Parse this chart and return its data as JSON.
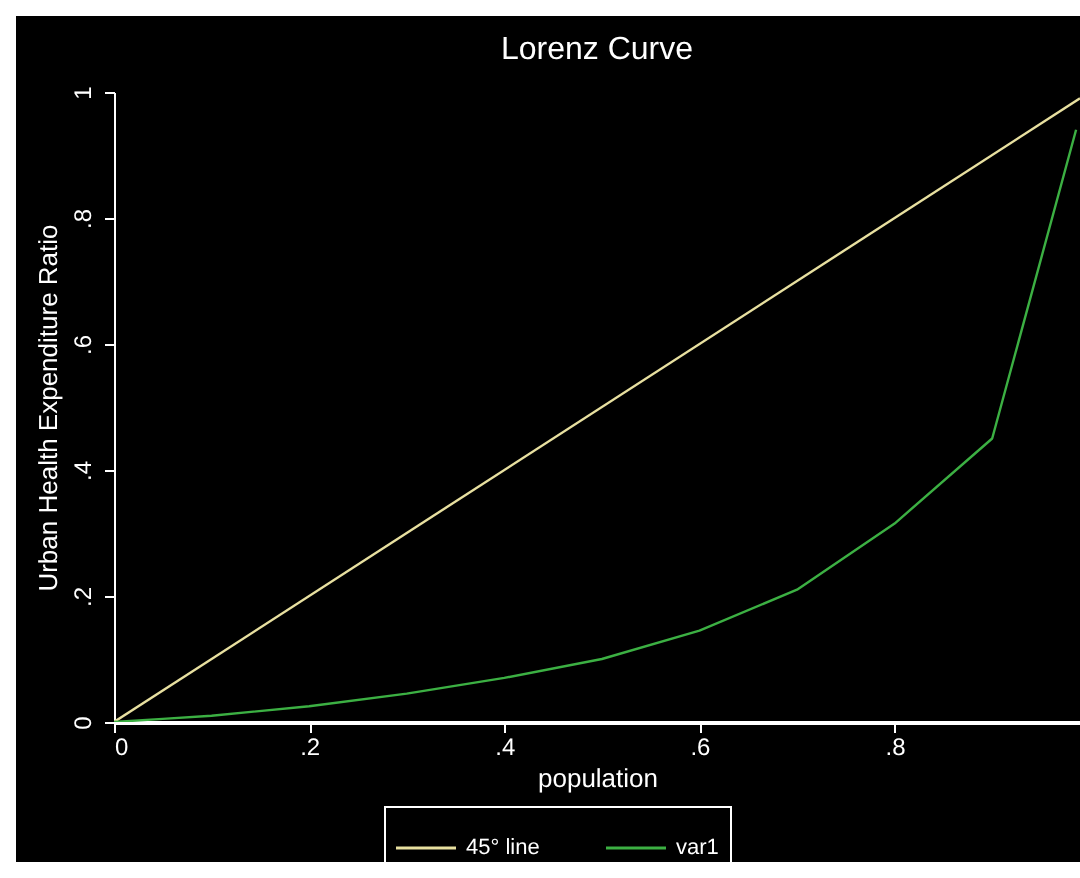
{
  "chart_data": {
    "type": "line",
    "title": "Lorenz Curve",
    "xlabel": "population",
    "ylabel": "Urban Health Expenditure Ratio",
    "xlim": [
      0,
      0.99
    ],
    "ylim": [
      0,
      1
    ],
    "xticks": [
      0,
      {
        "value": 0.2,
        "label": ".2"
      },
      {
        "value": 0.4,
        "label": ".4"
      },
      {
        "value": 0.6,
        "label": ".6"
      },
      {
        "value": 0.8,
        "label": ".8"
      }
    ],
    "yticks": [
      0,
      {
        "value": 0.2,
        "label": ".2"
      },
      {
        "value": 0.4,
        "label": ".4"
      },
      {
        "value": 0.6,
        "label": ".6"
      },
      {
        "value": 0.8,
        "label": ".8"
      },
      1
    ],
    "series": [
      {
        "name": "45° line",
        "color": "#e8e0a0",
        "x": [
          0,
          0.99
        ],
        "values": [
          0,
          0.99
        ]
      },
      {
        "name": "var1",
        "color": "#3cb043",
        "x": [
          0,
          0.05,
          0.1,
          0.2,
          0.3,
          0.4,
          0.5,
          0.6,
          0.7,
          0.8,
          0.9,
          0.986
        ],
        "values": [
          0,
          0.005,
          0.01,
          0.025,
          0.045,
          0.07,
          0.1,
          0.145,
          0.21,
          0.315,
          0.45,
          0.94
        ]
      }
    ],
    "grid": false,
    "legend": "bottom",
    "marker": "none",
    "line_style": "solid"
  }
}
